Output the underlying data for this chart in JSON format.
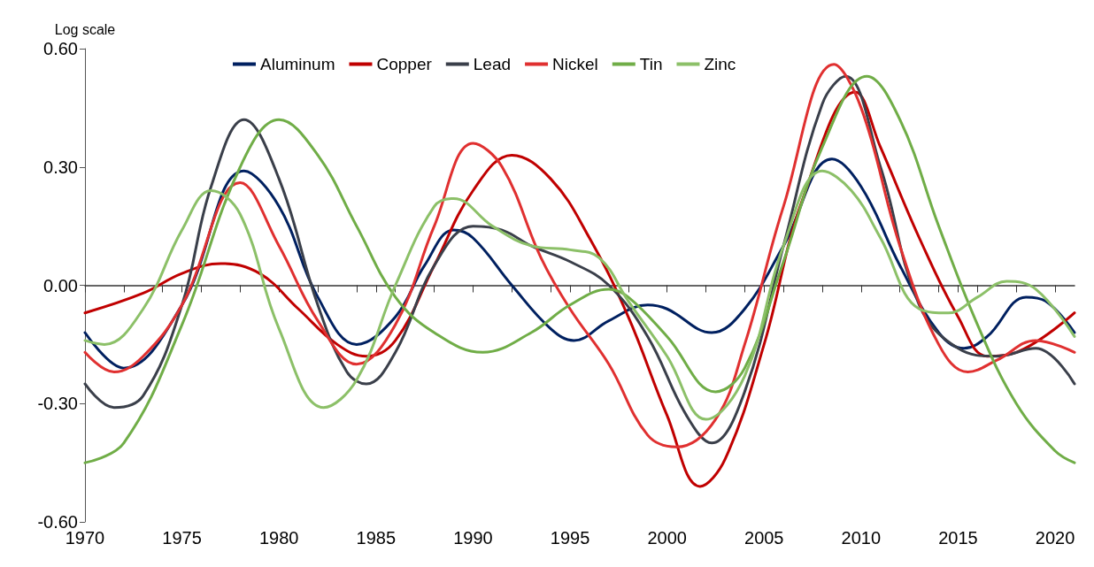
{
  "chart_data": {
    "type": "line",
    "ylabel": "Log scale",
    "xlim": [
      1970,
      2021
    ],
    "xticks": [
      1970,
      1975,
      1980,
      1985,
      1990,
      1995,
      2000,
      2005,
      2010,
      2015,
      2020
    ],
    "ylim": [
      -0.6,
      0.6
    ],
    "yticks": [
      {
        "value": -0.6,
        "label": "-0.60"
      },
      {
        "value": -0.3,
        "label": "-0.30"
      },
      {
        "value": 0,
        "label": "0.00"
      },
      {
        "value": 0.3,
        "label": "0.30"
      },
      {
        "value": 0.6,
        "label": "0.60"
      }
    ],
    "legend": "top",
    "marker": "none",
    "series": [
      {
        "name": "Aluminum",
        "color": "#002060",
        "x": [
          1970,
          1972,
          1975,
          1978.2,
          1980,
          1982,
          1984,
          1986,
          1987.5,
          1989,
          1990,
          1992,
          1994,
          1995.2,
          1997,
          1999,
          2000,
          2002.3,
          2004,
          2006,
          2008.5,
          2010,
          2012,
          2014,
          2015.3,
          2016.5,
          2018.5,
          2019.5,
          2021
        ],
        "values": [
          -0.12,
          -0.21,
          -0.05,
          0.29,
          0.2,
          -0.03,
          -0.15,
          -0.08,
          0.05,
          0.14,
          0.12,
          0.0,
          -0.11,
          -0.14,
          -0.09,
          -0.05,
          -0.06,
          -0.12,
          -0.06,
          0.1,
          0.32,
          0.25,
          0.05,
          -0.12,
          -0.16,
          -0.13,
          -0.03,
          -0.04,
          -0.12
        ]
      },
      {
        "name": "Copper",
        "color": "#c00000",
        "x": [
          1970,
          1973,
          1975,
          1977,
          1979,
          1981,
          1983,
          1984.5,
          1986,
          1988,
          1990,
          1992,
          1994,
          1996,
          1998,
          2000,
          2001.7,
          2003,
          2005,
          2007,
          2009.7,
          2011,
          2013,
          2015,
          2016.5,
          2018,
          2021
        ],
        "values": [
          -0.07,
          -0.02,
          0.03,
          0.055,
          0.03,
          -0.06,
          -0.15,
          -0.18,
          -0.14,
          0.05,
          0.24,
          0.33,
          0.27,
          0.12,
          -0.08,
          -0.33,
          -0.51,
          -0.44,
          -0.15,
          0.22,
          0.49,
          0.35,
          0.12,
          -0.08,
          -0.18,
          -0.17,
          -0.07
        ]
      },
      {
        "name": "Lead",
        "color": "#3a3f4a",
        "x": [
          1970,
          1971.5,
          1973,
          1975,
          1976.5,
          1978.2,
          1980,
          1982,
          1983.5,
          1984.5,
          1986,
          1988,
          1990,
          1991.5,
          1993,
          1995,
          1997,
          1999,
          2001,
          2002.3,
          2004,
          2006,
          2008,
          2009.2,
          2011,
          2013,
          2015,
          2017,
          2019,
          2021
        ],
        "values": [
          -0.25,
          -0.31,
          -0.28,
          -0.05,
          0.25,
          0.42,
          0.27,
          -0.05,
          -0.22,
          -0.25,
          -0.17,
          0.05,
          0.15,
          0.14,
          0.1,
          0.06,
          0.0,
          -0.13,
          -0.33,
          -0.4,
          -0.27,
          0.1,
          0.46,
          0.53,
          0.3,
          -0.05,
          -0.16,
          -0.18,
          -0.16,
          -0.25
        ]
      },
      {
        "name": "Nickel",
        "color": "#e03030",
        "x": [
          1970,
          1971.5,
          1973,
          1975,
          1978,
          1980,
          1982,
          1984,
          1986,
          1988,
          1990,
          1991.5,
          1993.5,
          1995,
          1997,
          1999,
          2000.5,
          2002.5,
          2004,
          2006,
          2008.6,
          2010,
          2012,
          2014,
          2015.5,
          2017,
          2019,
          2021
        ],
        "values": [
          -0.17,
          -0.22,
          -0.18,
          -0.05,
          0.26,
          0.1,
          -0.09,
          -0.2,
          -0.1,
          0.15,
          0.36,
          0.3,
          0.07,
          -0.06,
          -0.2,
          -0.38,
          -0.41,
          -0.34,
          -0.15,
          0.2,
          0.56,
          0.45,
          0.1,
          -0.15,
          -0.22,
          -0.19,
          -0.14,
          -0.17
        ]
      },
      {
        "name": "Tin",
        "color": "#70ad47",
        "x": [
          1970,
          1972,
          1975,
          1978,
          1980,
          1982,
          1984,
          1986,
          1988,
          1990.5,
          1993,
          1995,
          1997,
          1998,
          2000,
          2002.5,
          2004,
          2006,
          2008,
          2010.3,
          2012,
          2014,
          2016,
          2018,
          2020,
          2021
        ],
        "values": [
          -0.45,
          -0.4,
          -0.1,
          0.3,
          0.42,
          0.33,
          0.15,
          -0.03,
          -0.12,
          -0.17,
          -0.12,
          -0.05,
          -0.01,
          -0.03,
          -0.13,
          -0.27,
          -0.21,
          0.06,
          0.35,
          0.53,
          0.42,
          0.15,
          -0.1,
          -0.3,
          -0.42,
          -0.45
        ]
      },
      {
        "name": "Zinc",
        "color": "#8cc068",
        "x": [
          1970,
          1971,
          1973,
          1975,
          1976.5,
          1978,
          1980,
          1982.3,
          1984,
          1986,
          1988,
          1989,
          1991,
          1993,
          1995,
          1996.5,
          1998,
          2000,
          2002,
          2004,
          2006,
          2008,
          2009.5,
          2011,
          2013,
          2014.5,
          2016,
          2017.5,
          2019,
          2021
        ],
        "values": [
          -0.14,
          -0.15,
          -0.06,
          0.14,
          0.24,
          0.18,
          -0.11,
          -0.31,
          -0.24,
          0.0,
          0.2,
          0.22,
          0.15,
          0.1,
          0.09,
          0.07,
          -0.04,
          -0.18,
          -0.34,
          -0.23,
          0.1,
          0.29,
          0.24,
          0.12,
          -0.06,
          -0.07,
          -0.03,
          0.01,
          -0.01,
          -0.13
        ]
      }
    ]
  }
}
